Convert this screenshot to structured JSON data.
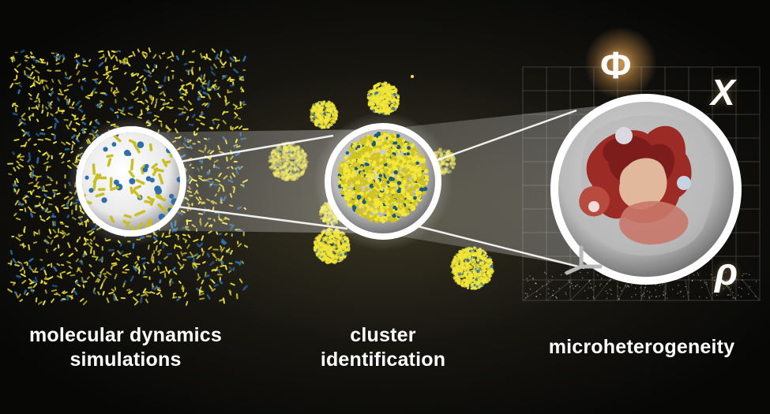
{
  "captions": {
    "molecular_dynamics": "molecular dynamics\nsimulations",
    "cluster_identification": "cluster\nidentification",
    "microheterogeneity": "microheterogeneity"
  },
  "symbols": {
    "phi": "Φ",
    "chi": "X",
    "rho": "ρ"
  },
  "colors": {
    "background": "#080806",
    "molecule_yellow": "#f2e63a",
    "molecule_blue": "#2f6fa8",
    "cluster_red": "#a8302a",
    "cluster_tan": "#e0b79a",
    "caption_text": "#ffffff"
  }
}
